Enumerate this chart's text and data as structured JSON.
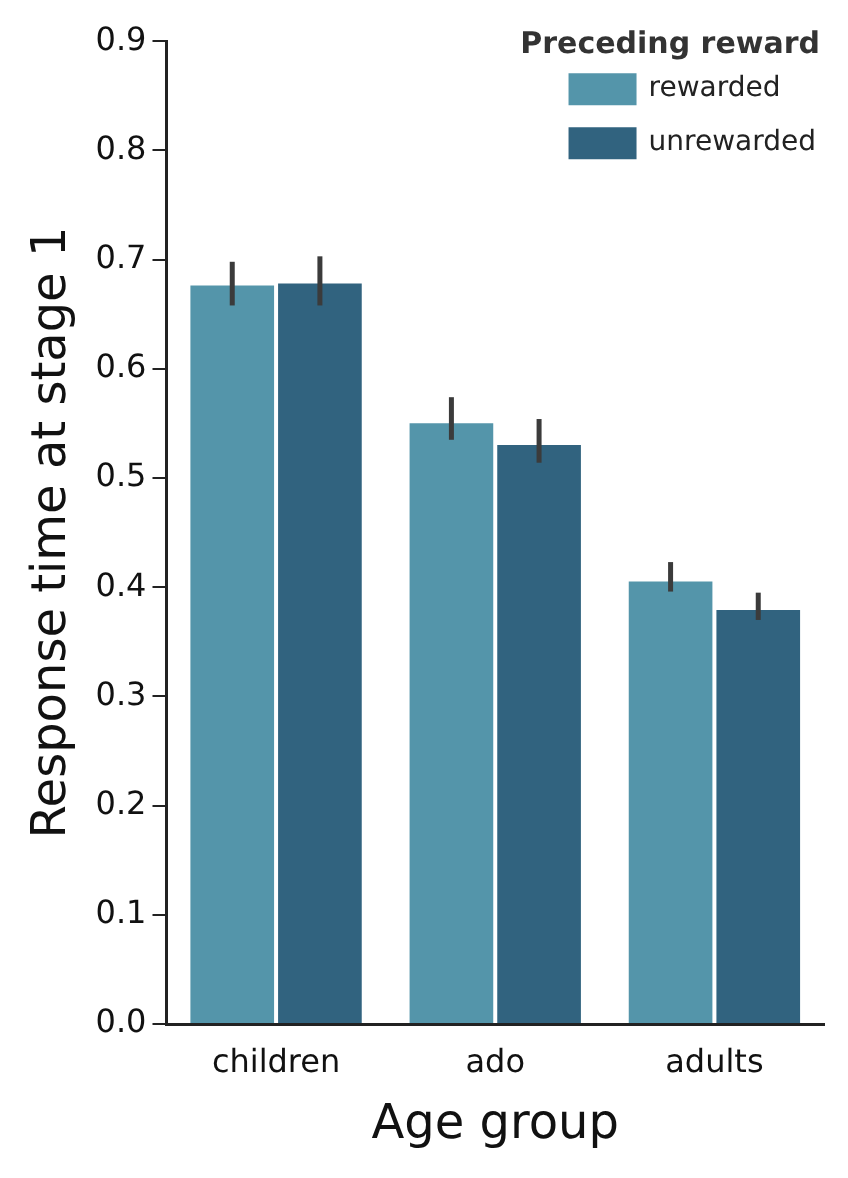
{
  "chart_data": {
    "type": "bar",
    "xlabel": "Age group",
    "ylabel": "Response time at stage 1",
    "legend_title": "Preceding reward",
    "categories": [
      "children",
      "ado",
      "adults"
    ],
    "series": [
      {
        "name": "rewarded",
        "color": "#5495aa",
        "values": [
          0.678,
          0.552,
          0.407
        ],
        "errors": [
          [
            0.658,
            0.698
          ],
          [
            0.535,
            0.574
          ],
          [
            0.396,
            0.423
          ]
        ]
      },
      {
        "name": "unrewarded",
        "color": "#31637f",
        "values": [
          0.68,
          0.532,
          0.381
        ],
        "errors": [
          [
            0.658,
            0.703
          ],
          [
            0.514,
            0.554
          ],
          [
            0.37,
            0.395
          ]
        ]
      }
    ],
    "ylim": [
      0,
      0.9
    ],
    "yticks": [
      {
        "value": 0,
        "label": "0.0"
      },
      0.1,
      0.2,
      0.3,
      0.4,
      0.5,
      0.6,
      0.7,
      0.8,
      0.9
    ],
    "grid": false,
    "legend": "top right"
  }
}
